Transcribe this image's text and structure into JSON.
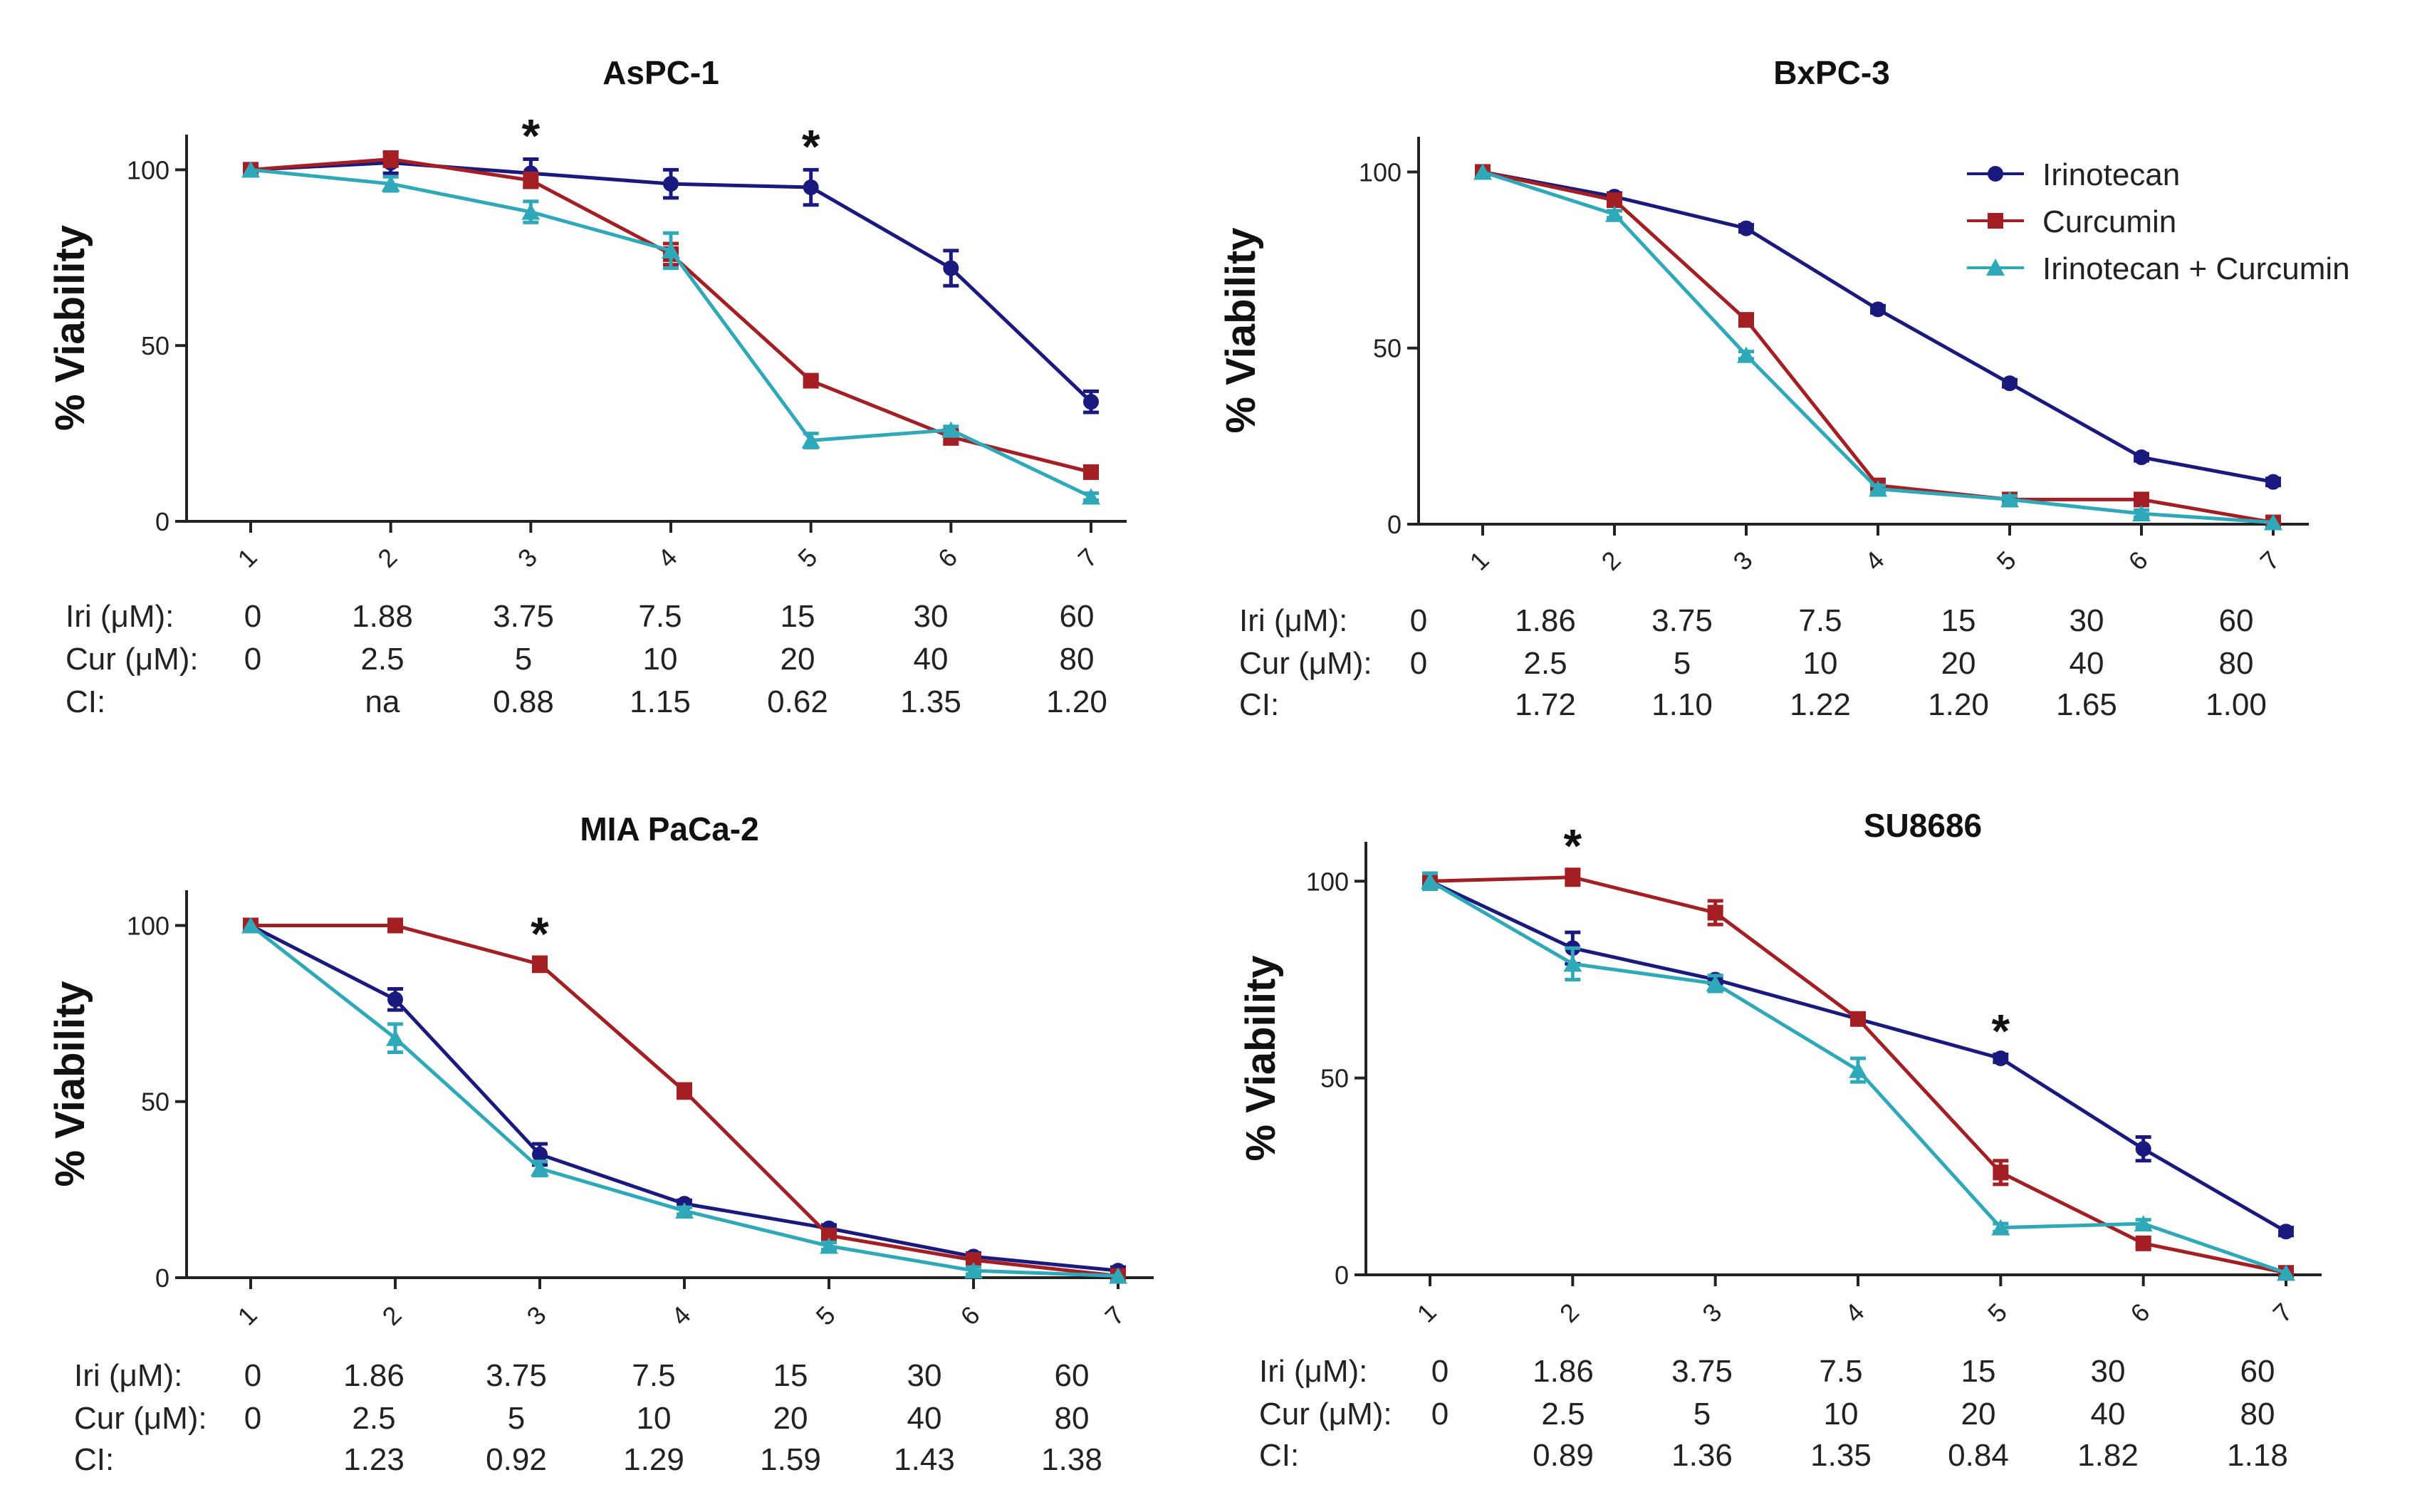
{
  "figure": {
    "legend": {
      "entries": [
        {
          "label": "Irinotecan",
          "color": "#1a1a7e",
          "marker": "circle"
        },
        {
          "label": "Curcumin",
          "color": "#a31f24",
          "marker": "square"
        },
        {
          "label": "Irinotecan + Curcumin",
          "color": "#2fa9b9",
          "marker": "triangle"
        }
      ]
    },
    "row_labels": {
      "iri": "Iri (μM):",
      "cur": "Cur (μM):",
      "ci": "CI:"
    }
  },
  "chart_data": [
    {
      "type": "line",
      "title": "AsPC-1",
      "xlabel": "",
      "ylabel": "% Viability",
      "ylim": [
        0,
        110
      ],
      "yticks": [
        "0",
        "50",
        "100"
      ],
      "categories": [
        "1",
        "2",
        "3",
        "4",
        "5",
        "6",
        "7"
      ],
      "series": [
        {
          "name": "Irinotecan",
          "values": [
            100,
            102,
            99,
            96,
            95,
            72,
            34
          ],
          "errors": [
            0,
            3,
            4,
            4,
            5,
            5,
            3
          ]
        },
        {
          "name": "Curcumin",
          "values": [
            100,
            103,
            97,
            76,
            40,
            24,
            14
          ],
          "errors": [
            0,
            2,
            2,
            3,
            1,
            2,
            1
          ]
        },
        {
          "name": "Irinotecan + Curcumin",
          "values": [
            100,
            96,
            88,
            77,
            23,
            26,
            7
          ],
          "errors": [
            0,
            2,
            3,
            5,
            2,
            1,
            1
          ]
        }
      ],
      "significance": [
        "3",
        "5"
      ],
      "table": {
        "iri": [
          "0",
          "1.88",
          "3.75",
          "7.5",
          "15",
          "30",
          "60"
        ],
        "cur": [
          "0",
          "2.5",
          "5",
          "10",
          "20",
          "40",
          "80"
        ],
        "ci": [
          "",
          "na",
          "0.88",
          "1.15",
          "0.62",
          "1.35",
          "1.20"
        ]
      }
    },
    {
      "type": "line",
      "title": "BxPC-3",
      "xlabel": "",
      "ylabel": "% Viability",
      "ylim": [
        0,
        110
      ],
      "yticks": [
        "0",
        "50",
        "100"
      ],
      "categories": [
        "1",
        "2",
        "3",
        "4",
        "5",
        "6",
        "7"
      ],
      "series": [
        {
          "name": "Irinotecan",
          "values": [
            100,
            93,
            84,
            61,
            40,
            19,
            12
          ],
          "errors": [
            0,
            1,
            1,
            1,
            1,
            1,
            1
          ]
        },
        {
          "name": "Curcumin",
          "values": [
            100,
            92,
            58,
            11,
            7,
            7,
            0.5
          ],
          "errors": [
            0,
            1,
            1,
            1,
            1,
            1,
            0.5
          ]
        },
        {
          "name": "Irinotecan + Curcumin",
          "values": [
            100,
            88,
            48,
            10,
            7,
            3,
            0.5
          ],
          "errors": [
            0,
            1,
            1,
            1,
            1,
            1,
            0.5
          ]
        }
      ],
      "significance": [],
      "table": {
        "iri": [
          "0",
          "1.86",
          "3.75",
          "7.5",
          "15",
          "30",
          "60"
        ],
        "cur": [
          "0",
          "2.5",
          "5",
          "10",
          "20",
          "40",
          "80"
        ],
        "ci": [
          "",
          "1.72",
          "1.10",
          "1.22",
          "1.20",
          "1.65",
          "1.00"
        ]
      }
    },
    {
      "type": "line",
      "title": "MIA PaCa-2",
      "xlabel": "",
      "ylabel": "% Viability",
      "ylim": [
        0,
        110
      ],
      "yticks": [
        "0",
        "50",
        "100"
      ],
      "categories": [
        "1",
        "2",
        "3",
        "4",
        "5",
        "6",
        "7"
      ],
      "series": [
        {
          "name": "Irinotecan",
          "values": [
            100,
            79,
            35,
            21,
            14,
            6,
            2
          ],
          "errors": [
            0,
            3,
            3,
            1,
            1,
            1,
            1
          ]
        },
        {
          "name": "Curcumin",
          "values": [
            100,
            100,
            89,
            53,
            12,
            5,
            0.5
          ],
          "errors": [
            0,
            1,
            2,
            2,
            1,
            1,
            0.5
          ]
        },
        {
          "name": "Irinotecan + Curcumin",
          "values": [
            100,
            68,
            31,
            19,
            9,
            2,
            0.5
          ],
          "errors": [
            0,
            4,
            2,
            1,
            1,
            1,
            0.5
          ]
        }
      ],
      "significance": [
        "3"
      ],
      "table": {
        "iri": [
          "0",
          "1.86",
          "3.75",
          "7.5",
          "15",
          "30",
          "60"
        ],
        "cur": [
          "0",
          "2.5",
          "5",
          "10",
          "20",
          "40",
          "80"
        ],
        "ci": [
          "",
          "1.23",
          "0.92",
          "1.29",
          "1.59",
          "1.43",
          "1.38"
        ]
      }
    },
    {
      "type": "line",
      "title": "SU8686",
      "xlabel": "",
      "ylabel": "% Viability",
      "ylim": [
        0,
        110
      ],
      "yticks": [
        "0",
        "50",
        "100"
      ],
      "categories": [
        "1",
        "2",
        "3",
        "4",
        "5",
        "6",
        "7"
      ],
      "series": [
        {
          "name": "Irinotecan",
          "values": [
            100,
            83,
            75,
            65,
            55,
            32,
            11
          ],
          "errors": [
            2,
            4,
            1,
            1,
            1,
            3,
            1
          ]
        },
        {
          "name": "Curcumin",
          "values": [
            100,
            101,
            92,
            65,
            26,
            8,
            0.5
          ],
          "errors": [
            2,
            2,
            3,
            1,
            3,
            1,
            0.5
          ]
        },
        {
          "name": "Irinotecan + Curcumin",
          "values": [
            100,
            79,
            74,
            52,
            12,
            13,
            0.5
          ],
          "errors": [
            2,
            4,
            2,
            3,
            1,
            1,
            0.5
          ]
        }
      ],
      "significance": [
        "2",
        "5"
      ],
      "table": {
        "iri": [
          "0",
          "1.86",
          "3.75",
          "7.5",
          "15",
          "30",
          "60"
        ],
        "cur": [
          "0",
          "2.5",
          "5",
          "10",
          "20",
          "40",
          "80"
        ],
        "ci": [
          "",
          "0.89",
          "1.36",
          "1.35",
          "0.84",
          "1.82",
          "1.18"
        ]
      }
    }
  ]
}
